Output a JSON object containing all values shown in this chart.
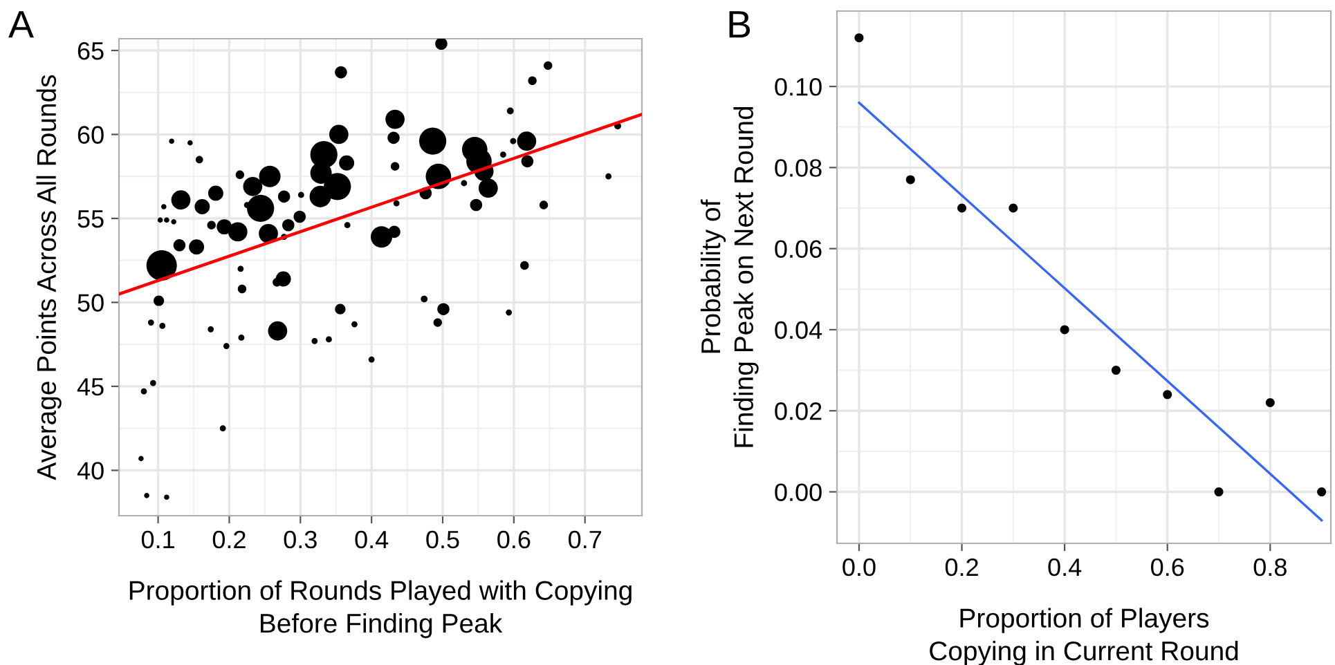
{
  "chart_data": [
    {
      "type": "bubble",
      "title": "A",
      "xlabel": "Proportion of Rounds Played with Copying\nBefore Finding Peak",
      "ylabel": "Average Points Across All Rounds",
      "xlim": [
        0.045,
        0.78
      ],
      "ylim": [
        37.3,
        65.7
      ],
      "xticks": [
        0.1,
        0.2,
        0.3,
        0.4,
        0.5,
        0.6,
        0.7
      ],
      "yticks": [
        40,
        45,
        50,
        55,
        60,
        65
      ],
      "grid": true,
      "series": [
        {
          "color": "#000000",
          "x": [
            0.357,
            0.119,
            0.145,
            0.158,
            0.354,
            0.365,
            0.333,
            0.329,
            0.352,
            0.328,
            0.366,
            0.433,
            0.431,
            0.433,
            0.435,
            0.414,
            0.432,
            0.486,
            0.494,
            0.476,
            0.356,
            0.474,
            0.105,
            0.101,
            0.13,
            0.154,
            0.132,
            0.162,
            0.181,
            0.108,
            0.103,
            0.112,
            0.122,
            0.175,
            0.193,
            0.212,
            0.215,
            0.233,
            0.257,
            0.244,
            0.225,
            0.277,
            0.301,
            0.299,
            0.283,
            0.255,
            0.277,
            0.216,
            0.218,
            0.276,
            0.267,
            0.498,
            0.648,
            0.626,
            0.595,
            0.545,
            0.551,
            0.558,
            0.564,
            0.547,
            0.53,
            0.585,
            0.599,
            0.618,
            0.619,
            0.642,
            0.746,
            0.733,
            0.615,
            0.501,
            0.593,
            0.09,
            0.106,
            0.174,
            0.196,
            0.217,
            0.268,
            0.32,
            0.34,
            0.376,
            0.4,
            0.08,
            0.093,
            0.191,
            0.076,
            0.084,
            0.112,
            0.493
          ],
          "values": [
            63.7,
            59.6,
            59.5,
            58.5,
            60.0,
            58.3,
            58.8,
            57.7,
            56.9,
            56.3,
            54.6,
            60.9,
            59.8,
            58.1,
            55.9,
            53.9,
            54.2,
            59.6,
            57.5,
            56.5,
            49.6,
            50.2,
            52.2,
            50.1,
            53.4,
            53.3,
            56.1,
            55.7,
            56.5,
            55.7,
            54.9,
            54.9,
            54.8,
            54.6,
            54.5,
            54.2,
            57.6,
            56.9,
            57.5,
            55.6,
            55.8,
            56.3,
            56.4,
            55.1,
            54.6,
            54.1,
            53.9,
            52.0,
            50.8,
            51.4,
            51.2,
            65.4,
            64.1,
            63.2,
            61.4,
            59.1,
            58.4,
            57.8,
            56.8,
            55.8,
            57.1,
            58.8,
            59.6,
            59.6,
            58.4,
            55.8,
            60.5,
            57.5,
            52.2,
            49.6,
            49.4,
            48.8,
            48.6,
            48.4,
            47.4,
            47.9,
            48.3,
            47.7,
            47.8,
            48.7,
            46.6,
            44.7,
            45.2,
            42.5,
            40.7,
            38.5,
            38.4,
            48.8
          ],
          "sizes": [
            0.16,
            0.03,
            0.03,
            0.06,
            0.4,
            0.25,
            0.8,
            0.5,
            0.8,
            0.5,
            0.04,
            0.4,
            0.16,
            0.08,
            0.04,
            0.5,
            0.16,
            0.8,
            0.7,
            0.16,
            0.12,
            0.05,
            1.0,
            0.12,
            0.16,
            0.25,
            0.4,
            0.25,
            0.25,
            0.03,
            0.03,
            0.03,
            0.03,
            0.08,
            0.25,
            0.4,
            0.08,
            0.4,
            0.5,
            0.8,
            0.04,
            0.16,
            0.04,
            0.16,
            0.16,
            0.4,
            0.04,
            0.04,
            0.08,
            0.25,
            0.08,
            0.16,
            0.08,
            0.08,
            0.05,
            0.7,
            0.7,
            0.4,
            0.4,
            0.16,
            0.04,
            0.04,
            0.04,
            0.4,
            0.16,
            0.08,
            0.05,
            0.04,
            0.08,
            0.16,
            0.04,
            0.04,
            0.04,
            0.04,
            0.04,
            0.04,
            0.4,
            0.04,
            0.04,
            0.04,
            0.04,
            0.04,
            0.04,
            0.04,
            0.03,
            0.03,
            0.03,
            0.08
          ]
        },
        {
          "type": "line",
          "color": "#ff0000",
          "x": [
            0.045,
            0.78
          ],
          "values": [
            50.5,
            61.2
          ]
        }
      ]
    },
    {
      "type": "scatter",
      "title": "B",
      "xlabel": "Proportion of Players\nCopying in Current Round",
      "ylabel": "Probability of\nFinding Peak on Next Round",
      "xlim": [
        -0.043,
        0.918
      ],
      "ylim": [
        -0.0127,
        0.1186
      ],
      "xticks": [
        {
          "value": 0.0,
          "label": "0.0"
        },
        0.2,
        0.4,
        0.6,
        0.8
      ],
      "yticks": [
        {
          "value": 0.0,
          "label": "0.00"
        },
        {
          "value": 0.02,
          "label": "0.02"
        },
        {
          "value": 0.04,
          "label": "0.04"
        },
        {
          "value": 0.06,
          "label": "0.06"
        },
        {
          "value": 0.08,
          "label": "0.08"
        },
        {
          "value": 0.1,
          "label": "0.10"
        }
      ],
      "grid": true,
      "series": [
        {
          "color": "#000000",
          "x": [
            0.0,
            0.1,
            0.2,
            0.3,
            0.4,
            0.5,
            0.6,
            0.7,
            0.8,
            0.9
          ],
          "values": [
            0.112,
            0.077,
            0.07,
            0.07,
            0.04,
            0.03,
            0.024,
            0.0,
            0.022,
            0.0
          ]
        },
        {
          "type": "line",
          "color": "#3366ff",
          "x": [
            0.0,
            0.9
          ],
          "values": [
            0.096,
            -0.007
          ]
        }
      ]
    }
  ]
}
